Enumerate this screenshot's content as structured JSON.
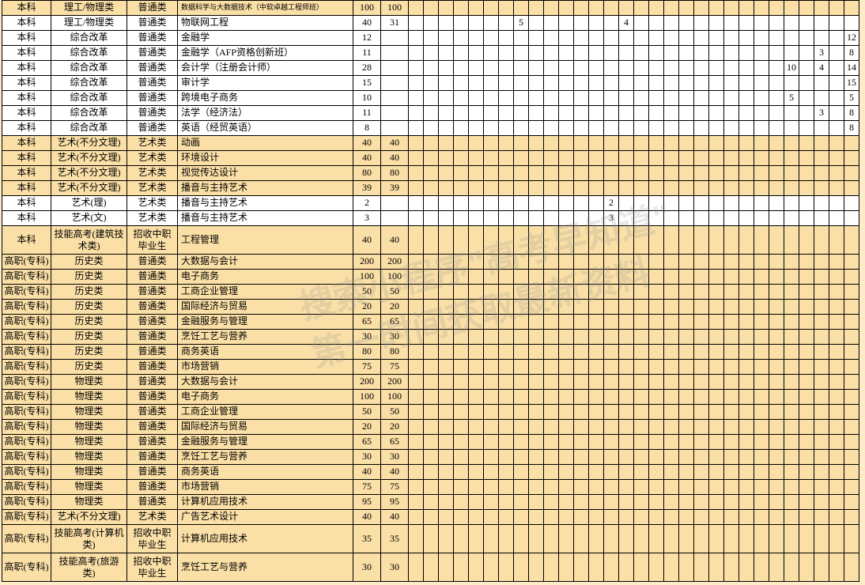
{
  "watermark_line1": "搜索小程序\"高考早知道\"",
  "watermark_line2": "第一时间获取最新资料",
  "col_widths": {
    "level": 62,
    "category": 96,
    "type": 64,
    "major": 222,
    "n1": 35,
    "n2": 35,
    "narrow": 19
  },
  "narrow_cols_count_a": 14,
  "narrow_cols_count_b": 16,
  "rows": [
    {
      "hl": true,
      "level": "本科",
      "cat": "理工/物理类",
      "type": "普通类",
      "major": "数据科学与大数据技术（中软卓越工程师班）",
      "small": true,
      "n1": "100",
      "n2": "100",
      "extra": {}
    },
    {
      "hl": false,
      "level": "本科",
      "cat": "理工/物理类",
      "type": "普通类",
      "major": "物联网工程",
      "n1": "40",
      "n2": "31",
      "extra": {
        "8": "5",
        "15": "4"
      }
    },
    {
      "hl": false,
      "level": "本科",
      "cat": "综合改革",
      "type": "普通类",
      "major": "金融学",
      "n1": "12",
      "n2": "",
      "extra": {
        "30": "12"
      }
    },
    {
      "hl": false,
      "level": "本科",
      "cat": "综合改革",
      "type": "普通类",
      "major": "金融学（AFP资格创新班）",
      "n1": "11",
      "n2": "",
      "extra": {
        "28": "3",
        "30": "8"
      }
    },
    {
      "hl": false,
      "level": "本科",
      "cat": "综合改革",
      "type": "普通类",
      "major": "会计学（注册会计师）",
      "n1": "28",
      "n2": "",
      "extra": {
        "26": "10",
        "28": "4",
        "30": "14"
      }
    },
    {
      "hl": false,
      "level": "本科",
      "cat": "综合改革",
      "type": "普通类",
      "major": "审计学",
      "n1": "15",
      "n2": "",
      "extra": {
        "30": "15"
      }
    },
    {
      "hl": false,
      "level": "本科",
      "cat": "综合改革",
      "type": "普通类",
      "major": "跨境电子商务",
      "n1": "10",
      "n2": "",
      "extra": {
        "26": "5",
        "30": "5"
      }
    },
    {
      "hl": false,
      "level": "本科",
      "cat": "综合改革",
      "type": "普通类",
      "major": "法学（经济法）",
      "n1": "11",
      "n2": "",
      "extra": {
        "28": "3",
        "30": "8"
      }
    },
    {
      "hl": false,
      "level": "本科",
      "cat": "综合改革",
      "type": "普通类",
      "major": "英语（经贸英语）",
      "n1": "8",
      "n2": "",
      "extra": {
        "30": "8"
      }
    },
    {
      "hl": true,
      "level": "本科",
      "cat": "艺术(不分文理)",
      "type": "艺术类",
      "major": "动画",
      "n1": "40",
      "n2": "40",
      "extra": {}
    },
    {
      "hl": true,
      "level": "本科",
      "cat": "艺术(不分文理)",
      "type": "艺术类",
      "major": "环境设计",
      "n1": "40",
      "n2": "40",
      "extra": {}
    },
    {
      "hl": true,
      "level": "本科",
      "cat": "艺术(不分文理)",
      "type": "艺术类",
      "major": "视觉传达设计",
      "n1": "80",
      "n2": "80",
      "extra": {}
    },
    {
      "hl": true,
      "level": "本科",
      "cat": "艺术(不分文理)",
      "type": "艺术类",
      "major": "播音与主持艺术",
      "n1": "39",
      "n2": "39",
      "extra": {}
    },
    {
      "hl": false,
      "level": "本科",
      "cat": "艺术(理)",
      "type": "艺术类",
      "major": "播音与主持艺术",
      "n1": "2",
      "n2": "",
      "extra": {
        "14": "2"
      }
    },
    {
      "hl": false,
      "level": "本科",
      "cat": "艺术(文)",
      "type": "艺术类",
      "major": "播音与主持艺术",
      "n1": "3",
      "n2": "",
      "extra": {
        "14": "3"
      }
    },
    {
      "hl": true,
      "tall": true,
      "level": "本科",
      "cat": "技能高考(建筑技术类)",
      "type": "招收中职毕业生",
      "major": "工程管理",
      "n1": "40",
      "n2": "40",
      "extra": {}
    },
    {
      "hl": true,
      "level": "高职(专科)",
      "cat": "历史类",
      "type": "普通类",
      "major": "大数据与会计",
      "n1": "200",
      "n2": "200",
      "extra": {}
    },
    {
      "hl": true,
      "level": "高职(专科)",
      "cat": "历史类",
      "type": "普通类",
      "major": "电子商务",
      "n1": "100",
      "n2": "100",
      "extra": {}
    },
    {
      "hl": true,
      "level": "高职(专科)",
      "cat": "历史类",
      "type": "普通类",
      "major": "工商企业管理",
      "n1": "50",
      "n2": "50",
      "extra": {}
    },
    {
      "hl": true,
      "level": "高职(专科)",
      "cat": "历史类",
      "type": "普通类",
      "major": "国际经济与贸易",
      "n1": "20",
      "n2": "20",
      "extra": {}
    },
    {
      "hl": true,
      "level": "高职(专科)",
      "cat": "历史类",
      "type": "普通类",
      "major": "金融服务与管理",
      "n1": "65",
      "n2": "65",
      "extra": {}
    },
    {
      "hl": true,
      "level": "高职(专科)",
      "cat": "历史类",
      "type": "普通类",
      "major": "烹饪工艺与营养",
      "n1": "30",
      "n2": "30",
      "extra": {}
    },
    {
      "hl": true,
      "level": "高职(专科)",
      "cat": "历史类",
      "type": "普通类",
      "major": "商务英语",
      "n1": "80",
      "n2": "80",
      "extra": {}
    },
    {
      "hl": true,
      "level": "高职(专科)",
      "cat": "历史类",
      "type": "普通类",
      "major": "市场营销",
      "n1": "75",
      "n2": "75",
      "extra": {}
    },
    {
      "hl": true,
      "level": "高职(专科)",
      "cat": "物理类",
      "type": "普通类",
      "major": "大数据与会计",
      "n1": "200",
      "n2": "200",
      "extra": {}
    },
    {
      "hl": true,
      "level": "高职(专科)",
      "cat": "物理类",
      "type": "普通类",
      "major": "电子商务",
      "n1": "100",
      "n2": "100",
      "extra": {}
    },
    {
      "hl": true,
      "level": "高职(专科)",
      "cat": "物理类",
      "type": "普通类",
      "major": "工商企业管理",
      "n1": "50",
      "n2": "50",
      "extra": {}
    },
    {
      "hl": true,
      "level": "高职(专科)",
      "cat": "物理类",
      "type": "普通类",
      "major": "国际经济与贸易",
      "n1": "20",
      "n2": "20",
      "extra": {}
    },
    {
      "hl": true,
      "level": "高职(专科)",
      "cat": "物理类",
      "type": "普通类",
      "major": "金融服务与管理",
      "n1": "65",
      "n2": "65",
      "extra": {}
    },
    {
      "hl": true,
      "level": "高职(专科)",
      "cat": "物理类",
      "type": "普通类",
      "major": "烹饪工艺与营养",
      "n1": "30",
      "n2": "30",
      "extra": {}
    },
    {
      "hl": true,
      "level": "高职(专科)",
      "cat": "物理类",
      "type": "普通类",
      "major": "商务英语",
      "n1": "40",
      "n2": "40",
      "extra": {}
    },
    {
      "hl": true,
      "level": "高职(专科)",
      "cat": "物理类",
      "type": "普通类",
      "major": "市场营销",
      "n1": "75",
      "n2": "75",
      "extra": {}
    },
    {
      "hl": true,
      "level": "高职(专科)",
      "cat": "物理类",
      "type": "普通类",
      "major": "计算机应用技术",
      "n1": "95",
      "n2": "95",
      "extra": {}
    },
    {
      "hl": true,
      "level": "高职(专科)",
      "cat": "艺术(不分文理)",
      "type": "艺术类",
      "major": "广告艺术设计",
      "n1": "40",
      "n2": "40",
      "extra": {}
    },
    {
      "hl": true,
      "tall": true,
      "level": "高职(专科)",
      "cat": "技能高考(计算机类)",
      "type": "招收中职毕业生",
      "major": "计算机应用技术",
      "n1": "35",
      "n2": "35",
      "extra": {}
    },
    {
      "hl": true,
      "tall": true,
      "level": "高职(专科)",
      "cat": "技能高考(旅游类)",
      "type": "招收中职毕业生",
      "major": "烹饪工艺与营养",
      "n1": "30",
      "n2": "30",
      "extra": {}
    }
  ]
}
